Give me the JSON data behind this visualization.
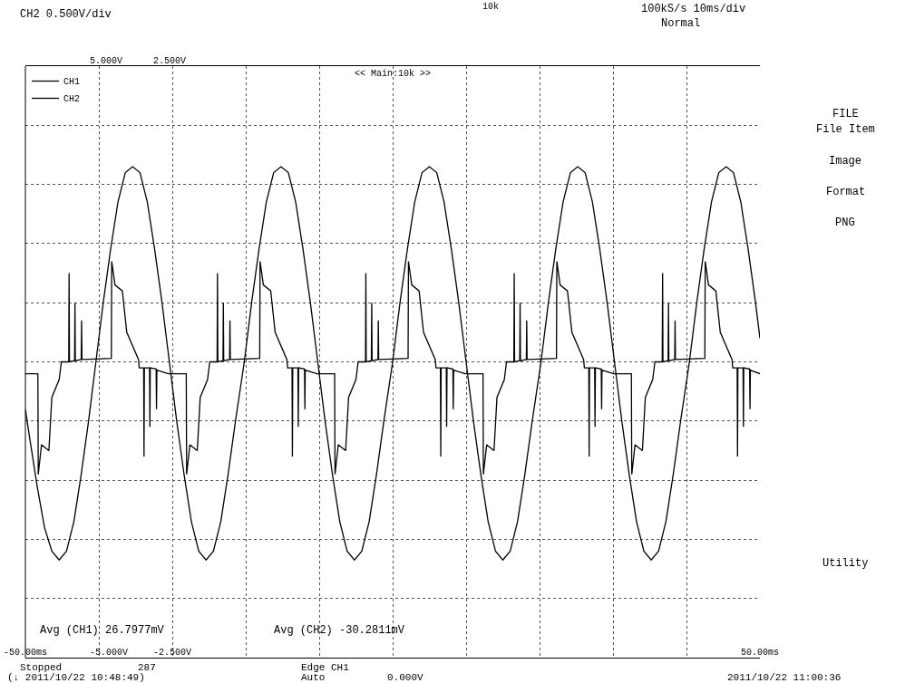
{
  "chart_data": {
    "type": "line",
    "series": [
      {
        "name": "CH1",
        "color": "#000000",
        "x": [
          -50,
          -49.4,
          -48.4,
          -47.4,
          -46.4,
          -45.4,
          -44.4,
          -43.4,
          -42.4,
          -41.4,
          -40.4,
          -39.4,
          -38.4,
          -37.4,
          -36.4,
          -35.4,
          -34.4,
          -33.4,
          -32.4,
          -31.4,
          -30.4,
          -29.4,
          -28.4,
          -27.4,
          -26.4,
          -25.4,
          -24.4,
          -23.4,
          -22.4,
          -21.4,
          -20.2,
          -19.2,
          -18.2,
          -17.2,
          -16.2,
          -15.2,
          -14.2,
          -13.2,
          -12.2,
          -11.2,
          -10.2,
          -9.2,
          -8.2,
          -7.2,
          -6.2,
          -5.2,
          -4.2,
          -3.2,
          -2.2,
          -1.2,
          0,
          1,
          2,
          3,
          4,
          5,
          6,
          7,
          8,
          9,
          10,
          11,
          12,
          13,
          14,
          15,
          16,
          17,
          18,
          19,
          20.2,
          21.2,
          22.2,
          23.2,
          24.2,
          25.2,
          26.2,
          27.2,
          28.2,
          29.2,
          30.2,
          31.2,
          32.2,
          33.2,
          34.2,
          35.2,
          36.2,
          37.2,
          38.2,
          39.2,
          40.4,
          41.4,
          42.4,
          43.4,
          44.4,
          45.4,
          46.4,
          47.4,
          48.4,
          49.4,
          50
        ],
        "values": [
          -0.8,
          -1.3,
          -2.1,
          -2.8,
          -3.2,
          -3.35,
          -3.2,
          -2.7,
          -1.9,
          -1.0,
          0,
          1.0,
          1.9,
          2.7,
          3.2,
          3.3,
          3.2,
          2.7,
          1.9,
          1.0,
          0,
          -1.0,
          -1.9,
          -2.7,
          -3.2,
          -3.35,
          -3.2,
          -2.7,
          -1.9,
          -1.0,
          0,
          1.0,
          1.9,
          2.7,
          3.2,
          3.3,
          3.2,
          2.7,
          1.9,
          1.0,
          0,
          -1.0,
          -1.9,
          -2.7,
          -3.2,
          -3.35,
          -3.2,
          -2.7,
          -1.9,
          -1.0,
          0,
          1.0,
          1.9,
          2.7,
          3.2,
          3.3,
          3.2,
          2.7,
          1.9,
          1.0,
          0,
          -1.0,
          -1.9,
          -2.7,
          -3.2,
          -3.35,
          -3.2,
          -2.7,
          -1.9,
          -1.0,
          0,
          1.0,
          1.9,
          2.7,
          3.2,
          3.3,
          3.2,
          2.7,
          1.9,
          1.0,
          0,
          -1.0,
          -1.9,
          -2.7,
          -3.2,
          -3.35,
          -3.2,
          -2.7,
          -1.9,
          -1.0,
          0,
          1.0,
          1.9,
          2.7,
          3.2,
          3.3,
          3.2,
          2.7,
          1.9,
          1.0,
          0.4
        ]
      },
      {
        "name": "CH2",
        "color": "#000000",
        "axis": "y2",
        "x": [
          -50,
          -48.3,
          -48.25,
          -47.8,
          -46.8,
          -46.4,
          -45.4,
          -45.1,
          -44.1,
          -44.05,
          -44.0,
          -43.3,
          -43.25,
          -43.2,
          -42.4,
          -42.35,
          -42.3,
          -38.3,
          -38.25,
          -37.8,
          -36.8,
          -36.2,
          -34.6,
          -34.5,
          -33.9,
          -33.85,
          -33.8,
          -33.1,
          -33.05,
          -33.0,
          -32.2,
          -32.15,
          -32.1,
          -30.5,
          -28.1,
          -28.05,
          -27.6,
          -26.6,
          -26.2,
          -25.2,
          -24.9,
          -23.9,
          -23.85,
          -23.8,
          -23.1,
          -23.05,
          -23.0,
          -22.2,
          -22.15,
          -22.1,
          -18.1,
          -18.05,
          -17.6,
          -16.6,
          -16.0,
          -14.4,
          -14.3,
          -13.7,
          -13.65,
          -13.6,
          -12.9,
          -12.85,
          -12.8,
          -12.0,
          -11.95,
          -11.9,
          -10.3,
          -7.9,
          -7.85,
          -7.4,
          -6.4,
          -6.0,
          -5.0,
          -4.7,
          -3.7,
          -3.65,
          -3.6,
          -2.9,
          -2.85,
          -2.8,
          -2.0,
          -1.95,
          -1.9,
          2.1,
          2.15,
          2.6,
          3.6,
          4.2,
          5.8,
          5.9,
          6.5,
          6.55,
          6.6,
          7.3,
          7.35,
          7.4,
          8.2,
          8.25,
          8.3,
          9.9,
          12.3,
          12.35,
          12.8,
          13.8,
          14.2,
          15.2,
          15.5,
          16.5,
          16.55,
          16.6,
          17.3,
          17.35,
          17.4,
          18.2,
          18.25,
          18.3,
          22.3,
          22.35,
          22.8,
          23.8,
          24.4,
          26.0,
          26.1,
          26.7,
          26.75,
          26.8,
          27.5,
          27.55,
          27.6,
          28.4,
          28.45,
          28.5,
          30.1,
          32.5,
          32.55,
          33.0,
          34.0,
          34.4,
          35.4,
          35.7,
          36.7,
          36.75,
          36.8,
          37.5,
          37.55,
          37.6,
          38.4,
          38.45,
          38.5,
          42.5,
          42.55,
          43.0,
          44.0,
          44.6,
          46.2,
          46.3,
          46.9,
          46.95,
          47.0,
          47.7,
          47.75,
          47.8,
          48.6,
          48.65,
          48.7,
          50
        ],
        "values": [
          -0.1,
          -0.1,
          -0.95,
          -0.7,
          -0.75,
          -0.3,
          -0.15,
          0.0,
          0.0,
          0.75,
          0.0,
          0.01,
          0.5,
          0.01,
          0.02,
          0.35,
          0.02,
          0.03,
          0.85,
          0.65,
          0.6,
          0.25,
          0.02,
          -0.05,
          -0.05,
          -0.8,
          -0.05,
          -0.05,
          -0.55,
          -0.05,
          -0.06,
          -0.4,
          -0.07,
          -0.1,
          -0.1,
          -0.95,
          -0.7,
          -0.75,
          -0.3,
          -0.15,
          0.0,
          0.0,
          0.75,
          0.0,
          0.01,
          0.5,
          0.01,
          0.02,
          0.35,
          0.02,
          0.03,
          0.85,
          0.65,
          0.6,
          0.25,
          0.02,
          -0.05,
          -0.05,
          -0.8,
          -0.05,
          -0.05,
          -0.55,
          -0.05,
          -0.06,
          -0.4,
          -0.07,
          -0.1,
          -0.1,
          -0.95,
          -0.7,
          -0.75,
          -0.3,
          -0.15,
          0.0,
          0.0,
          0.75,
          0.0,
          0.01,
          0.5,
          0.01,
          0.02,
          0.35,
          0.02,
          0.03,
          0.85,
          0.65,
          0.6,
          0.25,
          0.02,
          -0.05,
          -0.05,
          -0.8,
          -0.05,
          -0.05,
          -0.55,
          -0.05,
          -0.06,
          -0.4,
          -0.07,
          -0.1,
          -0.1,
          -0.95,
          -0.7,
          -0.75,
          -0.3,
          -0.15,
          0.0,
          0.0,
          0.75,
          0.0,
          0.01,
          0.5,
          0.01,
          0.02,
          0.35,
          0.02,
          0.03,
          0.85,
          0.65,
          0.6,
          0.25,
          0.02,
          -0.05,
          -0.05,
          -0.8,
          -0.05,
          -0.05,
          -0.55,
          -0.05,
          -0.06,
          -0.4,
          -0.07,
          -0.1,
          -0.1,
          -0.95,
          -0.7,
          -0.75,
          -0.3,
          -0.15,
          0.0,
          0.0,
          0.75,
          0.0,
          0.01,
          0.5,
          0.01,
          0.02,
          0.35,
          0.02,
          0.03,
          0.85,
          0.65,
          0.6,
          0.25,
          0.02,
          -0.05,
          -0.05,
          -0.8,
          -0.05,
          -0.05,
          -0.55,
          -0.05,
          -0.06,
          -0.4,
          -0.07,
          -0.1
        ]
      }
    ],
    "xlim": [
      -50,
      50
    ],
    "xticks": [
      {
        "value": -50,
        "label": "-50.00ms"
      },
      {
        "value": -40,
        "label": null
      },
      {
        "value": -30,
        "label": null
      },
      {
        "value": -20,
        "label": null
      },
      {
        "value": -10,
        "label": null
      },
      {
        "value": 0,
        "label": null
      },
      {
        "value": 10,
        "label": null
      },
      {
        "value": 20,
        "label": null
      },
      {
        "value": 30,
        "label": null
      },
      {
        "value": 40,
        "label": null
      },
      {
        "value": 50,
        "label": "50.00ms"
      }
    ],
    "ylim": [
      -5,
      5
    ],
    "yticks": [
      {
        "value": -5,
        "label": "-5.000V"
      },
      {
        "value": -4,
        "label": null
      },
      {
        "value": -3,
        "label": null
      },
      {
        "value": -2,
        "label": null
      },
      {
        "value": -1,
        "label": null
      },
      {
        "value": 0,
        "label": null
      },
      {
        "value": 1,
        "label": null
      },
      {
        "value": 2,
        "label": null
      },
      {
        "value": 3,
        "label": null
      },
      {
        "value": 4,
        "label": null
      },
      {
        "value": 5,
        "label": "5.000V"
      }
    ],
    "y2lim": [
      -2.5,
      2.5
    ],
    "y2ticks": [
      {
        "value": -2.5,
        "label": "-2.500V"
      },
      {
        "value": 2.5,
        "label": "2.500V"
      }
    ],
    "grid": true,
    "legend": "top left",
    "marker": "none",
    "line_style": "solid",
    "annotations": [
      "CH2 0.500V/div",
      "10k",
      "100kS/s 10ms/div",
      "Normal",
      "<< Main:10k >>",
      "Avg (CH1) 26.7977mV",
      "Avg (CH2) -30.2811mV",
      "Stopped",
      "287",
      "(↓ 2011/10/22 10:48:49)",
      "Edge CH1",
      "Auto",
      "0.000V",
      "2011/10/22 11:00:36",
      "FILE",
      "File Item",
      "Image",
      "Format",
      "PNG",
      "Utility"
    ]
  }
}
